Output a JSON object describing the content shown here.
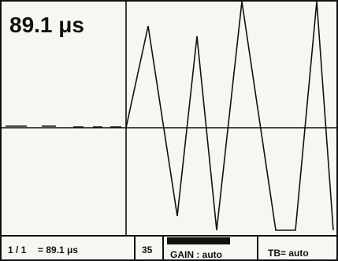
{
  "screen": {
    "time_readout": "89.1 μs"
  },
  "status_bar": {
    "range_index": "1 / 1",
    "range_value": "= 89.1 μs",
    "gate_value": "35",
    "gain_label": "GAIN : auto",
    "tb_label": "TB= auto"
  },
  "colors": {
    "background": "#f7f7f2",
    "foreground": "#111111"
  }
}
